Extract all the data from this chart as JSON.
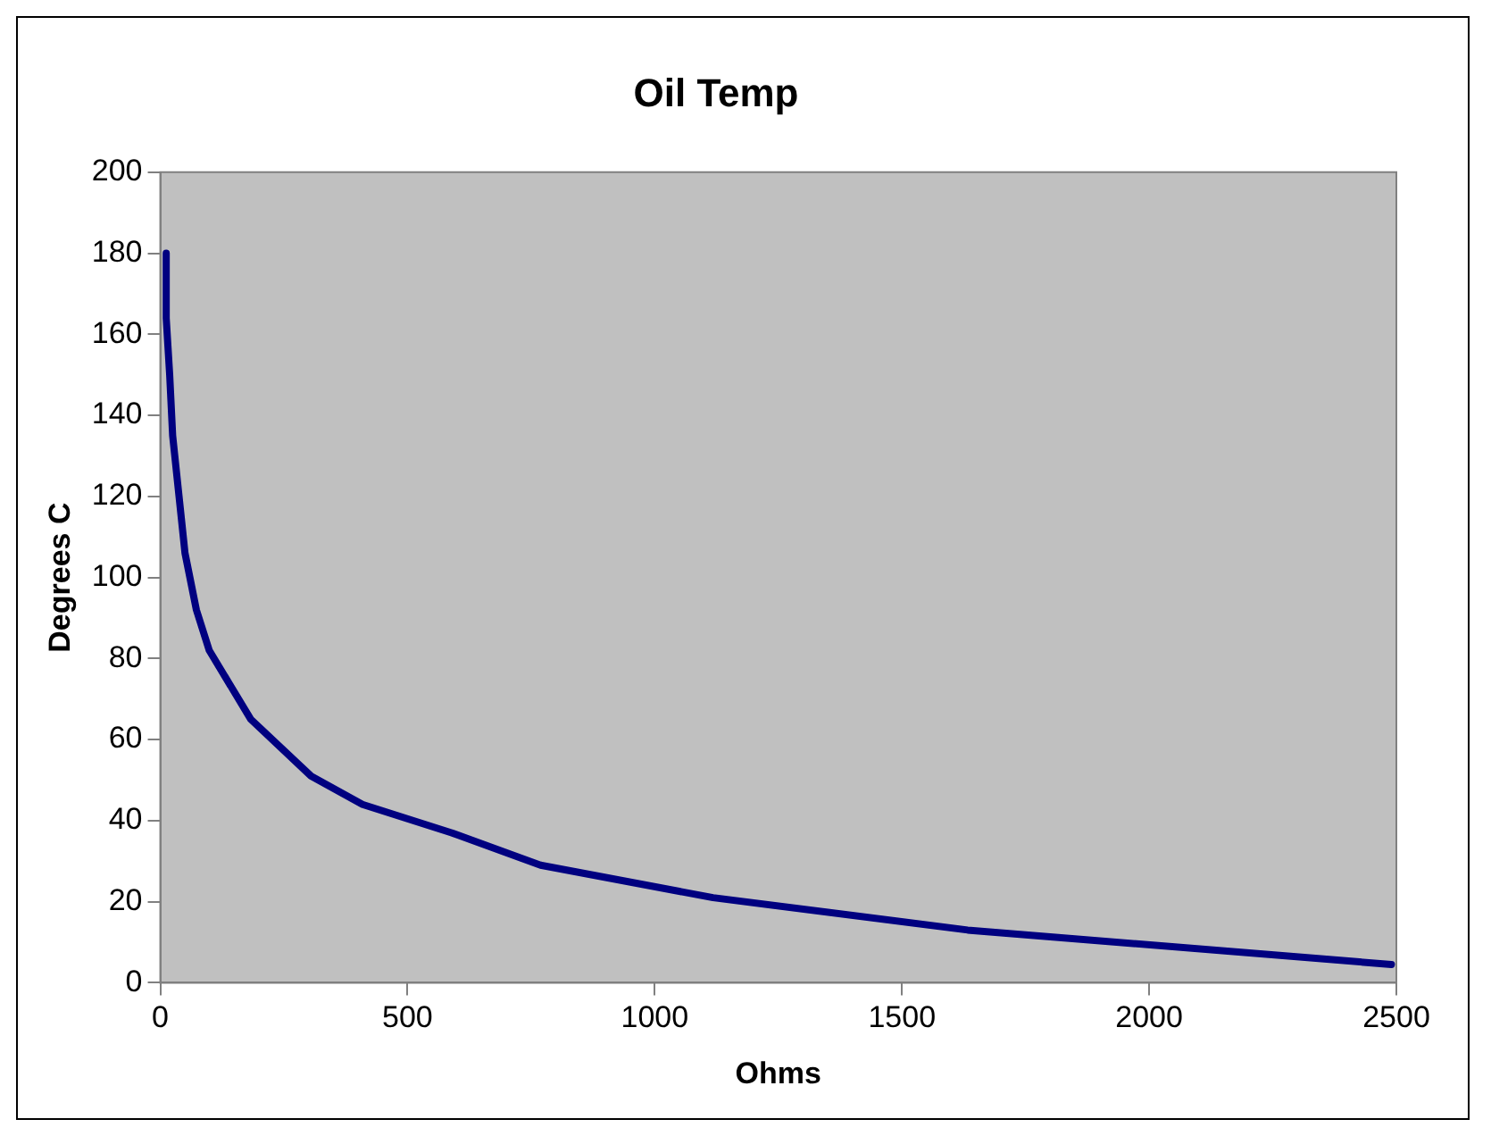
{
  "chart_data": {
    "type": "line",
    "title": "Oil Temp",
    "xlabel": "Ohms",
    "ylabel": "Degrees C",
    "series": [
      {
        "color": "#000080",
        "x": [
          12,
          12,
          19,
          25,
          50,
          73,
          99,
          183,
          305,
          409,
          589,
          769,
          1118,
          1633,
          2490
        ],
        "values": [
          180,
          164,
          150,
          135,
          106,
          92,
          82,
          65,
          51,
          44,
          37,
          29,
          21,
          13,
          4.5
        ]
      }
    ],
    "xlim": [
      0,
      2500
    ],
    "xticks": [
      0,
      500,
      1000,
      1500,
      2000,
      2500
    ],
    "ylim": [
      0,
      200
    ],
    "yticks": [
      0,
      20,
      40,
      60,
      80,
      100,
      120,
      140,
      160,
      180,
      200
    ],
    "grid": false,
    "legend": false,
    "marker": "none",
    "line_style": "solid"
  }
}
